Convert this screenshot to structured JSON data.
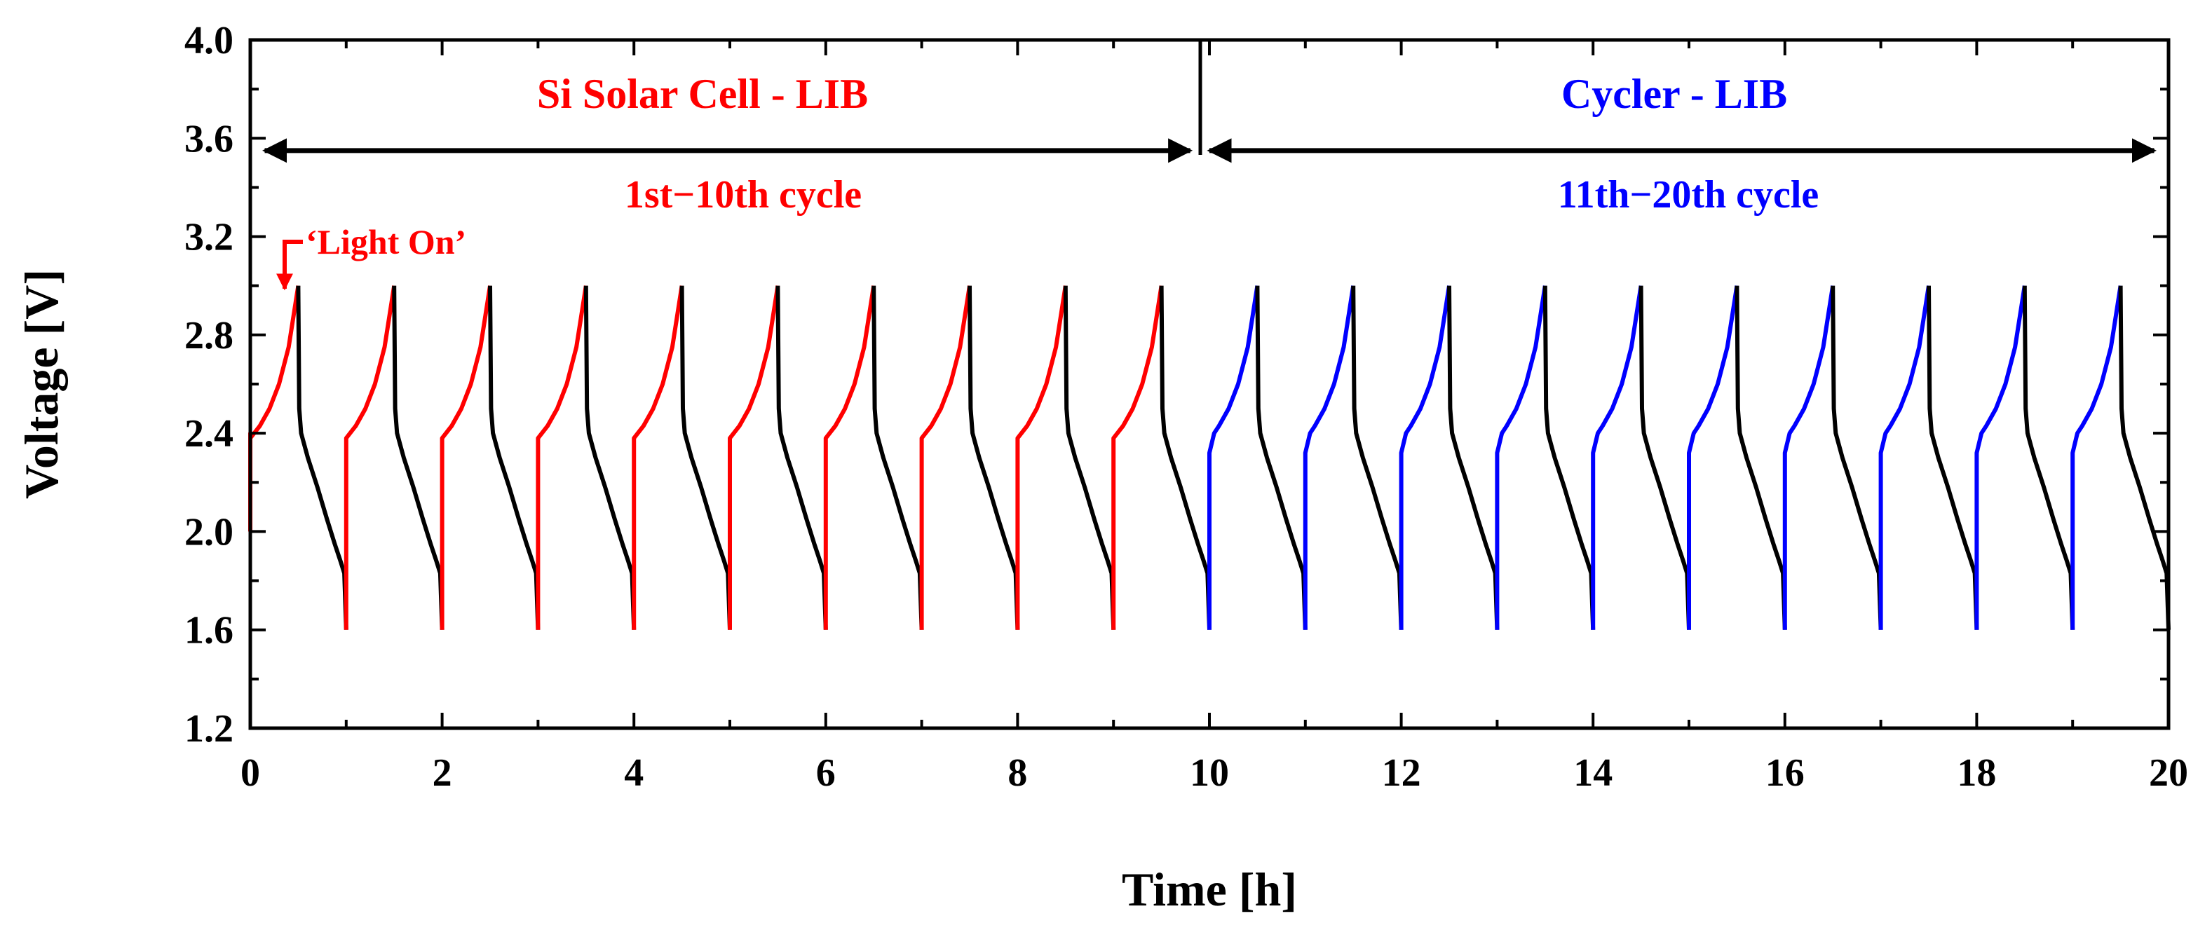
{
  "chart_data": {
    "type": "line",
    "xlabel": "Time [h]",
    "ylabel": "Voltage [V]",
    "xlim": [
      0,
      20
    ],
    "ylim": [
      1.2,
      4.0
    ],
    "x_ticks": [
      0,
      2,
      4,
      6,
      8,
      10,
      12,
      14,
      16,
      18,
      20
    ],
    "x_tick_labels": [
      "0",
      "2",
      "4",
      "6",
      "8",
      "10",
      "12",
      "14",
      "16",
      "18",
      "20"
    ],
    "y_ticks": [
      1.2,
      1.6,
      2.0,
      2.4,
      2.8,
      3.2,
      3.6,
      4.0
    ],
    "y_tick_labels": [
      "1.2",
      "1.6",
      "2.0",
      "2.4",
      "2.8",
      "3.2",
      "3.6",
      "4.0"
    ],
    "grid": false,
    "cycle_period_h": 1.0,
    "charge_duration_h": 0.5,
    "voltage_min": 1.6,
    "voltage_max": 3.0,
    "series": [
      {
        "name": "Si Solar Cell - LIB charge",
        "color": "#ff0000",
        "cycles": "1st-10th",
        "charge_profile": {
          "start_voltage": 1.6,
          "step_voltage": 2.38,
          "points": [
            [
              0.0,
              2.38
            ],
            [
              0.1,
              2.43
            ],
            [
              0.2,
              2.5
            ],
            [
              0.3,
              2.6
            ],
            [
              0.4,
              2.75
            ],
            [
              0.5,
              3.0
            ]
          ]
        }
      },
      {
        "name": "Cycler - LIB charge",
        "color": "#0000ff",
        "cycles": "11th-20th",
        "charge_profile": {
          "start_voltage": 1.6,
          "step_voltage": 2.32,
          "points": [
            [
              0.0,
              2.32
            ],
            [
              0.05,
              2.4
            ],
            [
              0.1,
              2.43
            ],
            [
              0.2,
              2.5
            ],
            [
              0.3,
              2.6
            ],
            [
              0.4,
              2.75
            ],
            [
              0.5,
              3.0
            ]
          ]
        }
      },
      {
        "name": "Discharge",
        "color": "#000000",
        "discharge_profile": {
          "points": [
            [
              0.5,
              3.0
            ],
            [
              0.51,
              2.5
            ],
            [
              0.53,
              2.4
            ],
            [
              0.6,
              2.3
            ],
            [
              0.7,
              2.18
            ],
            [
              0.8,
              2.05
            ],
            [
              0.88,
              1.95
            ],
            [
              0.94,
              1.88
            ],
            [
              0.98,
              1.83
            ],
            [
              1.0,
              1.6
            ]
          ]
        }
      }
    ],
    "first_cycle": {
      "start_voltage": 2.0,
      "start_hold_voltage": 2.4
    },
    "annotations": {
      "left_title": "Si Solar Cell - LIB",
      "left_subtitle": "1st−10th cycle",
      "right_title": "Cycler - LIB",
      "right_subtitle": "11th−20th cycle",
      "light_on": "‘Light On’",
      "divider_x": 9.9,
      "arrow_y": 3.55,
      "left_arrow_range": [
        0.15,
        9.8
      ],
      "right_arrow_range": [
        10.0,
        19.85
      ],
      "left_color": "#ff0000",
      "right_color": "#0000ff"
    }
  }
}
